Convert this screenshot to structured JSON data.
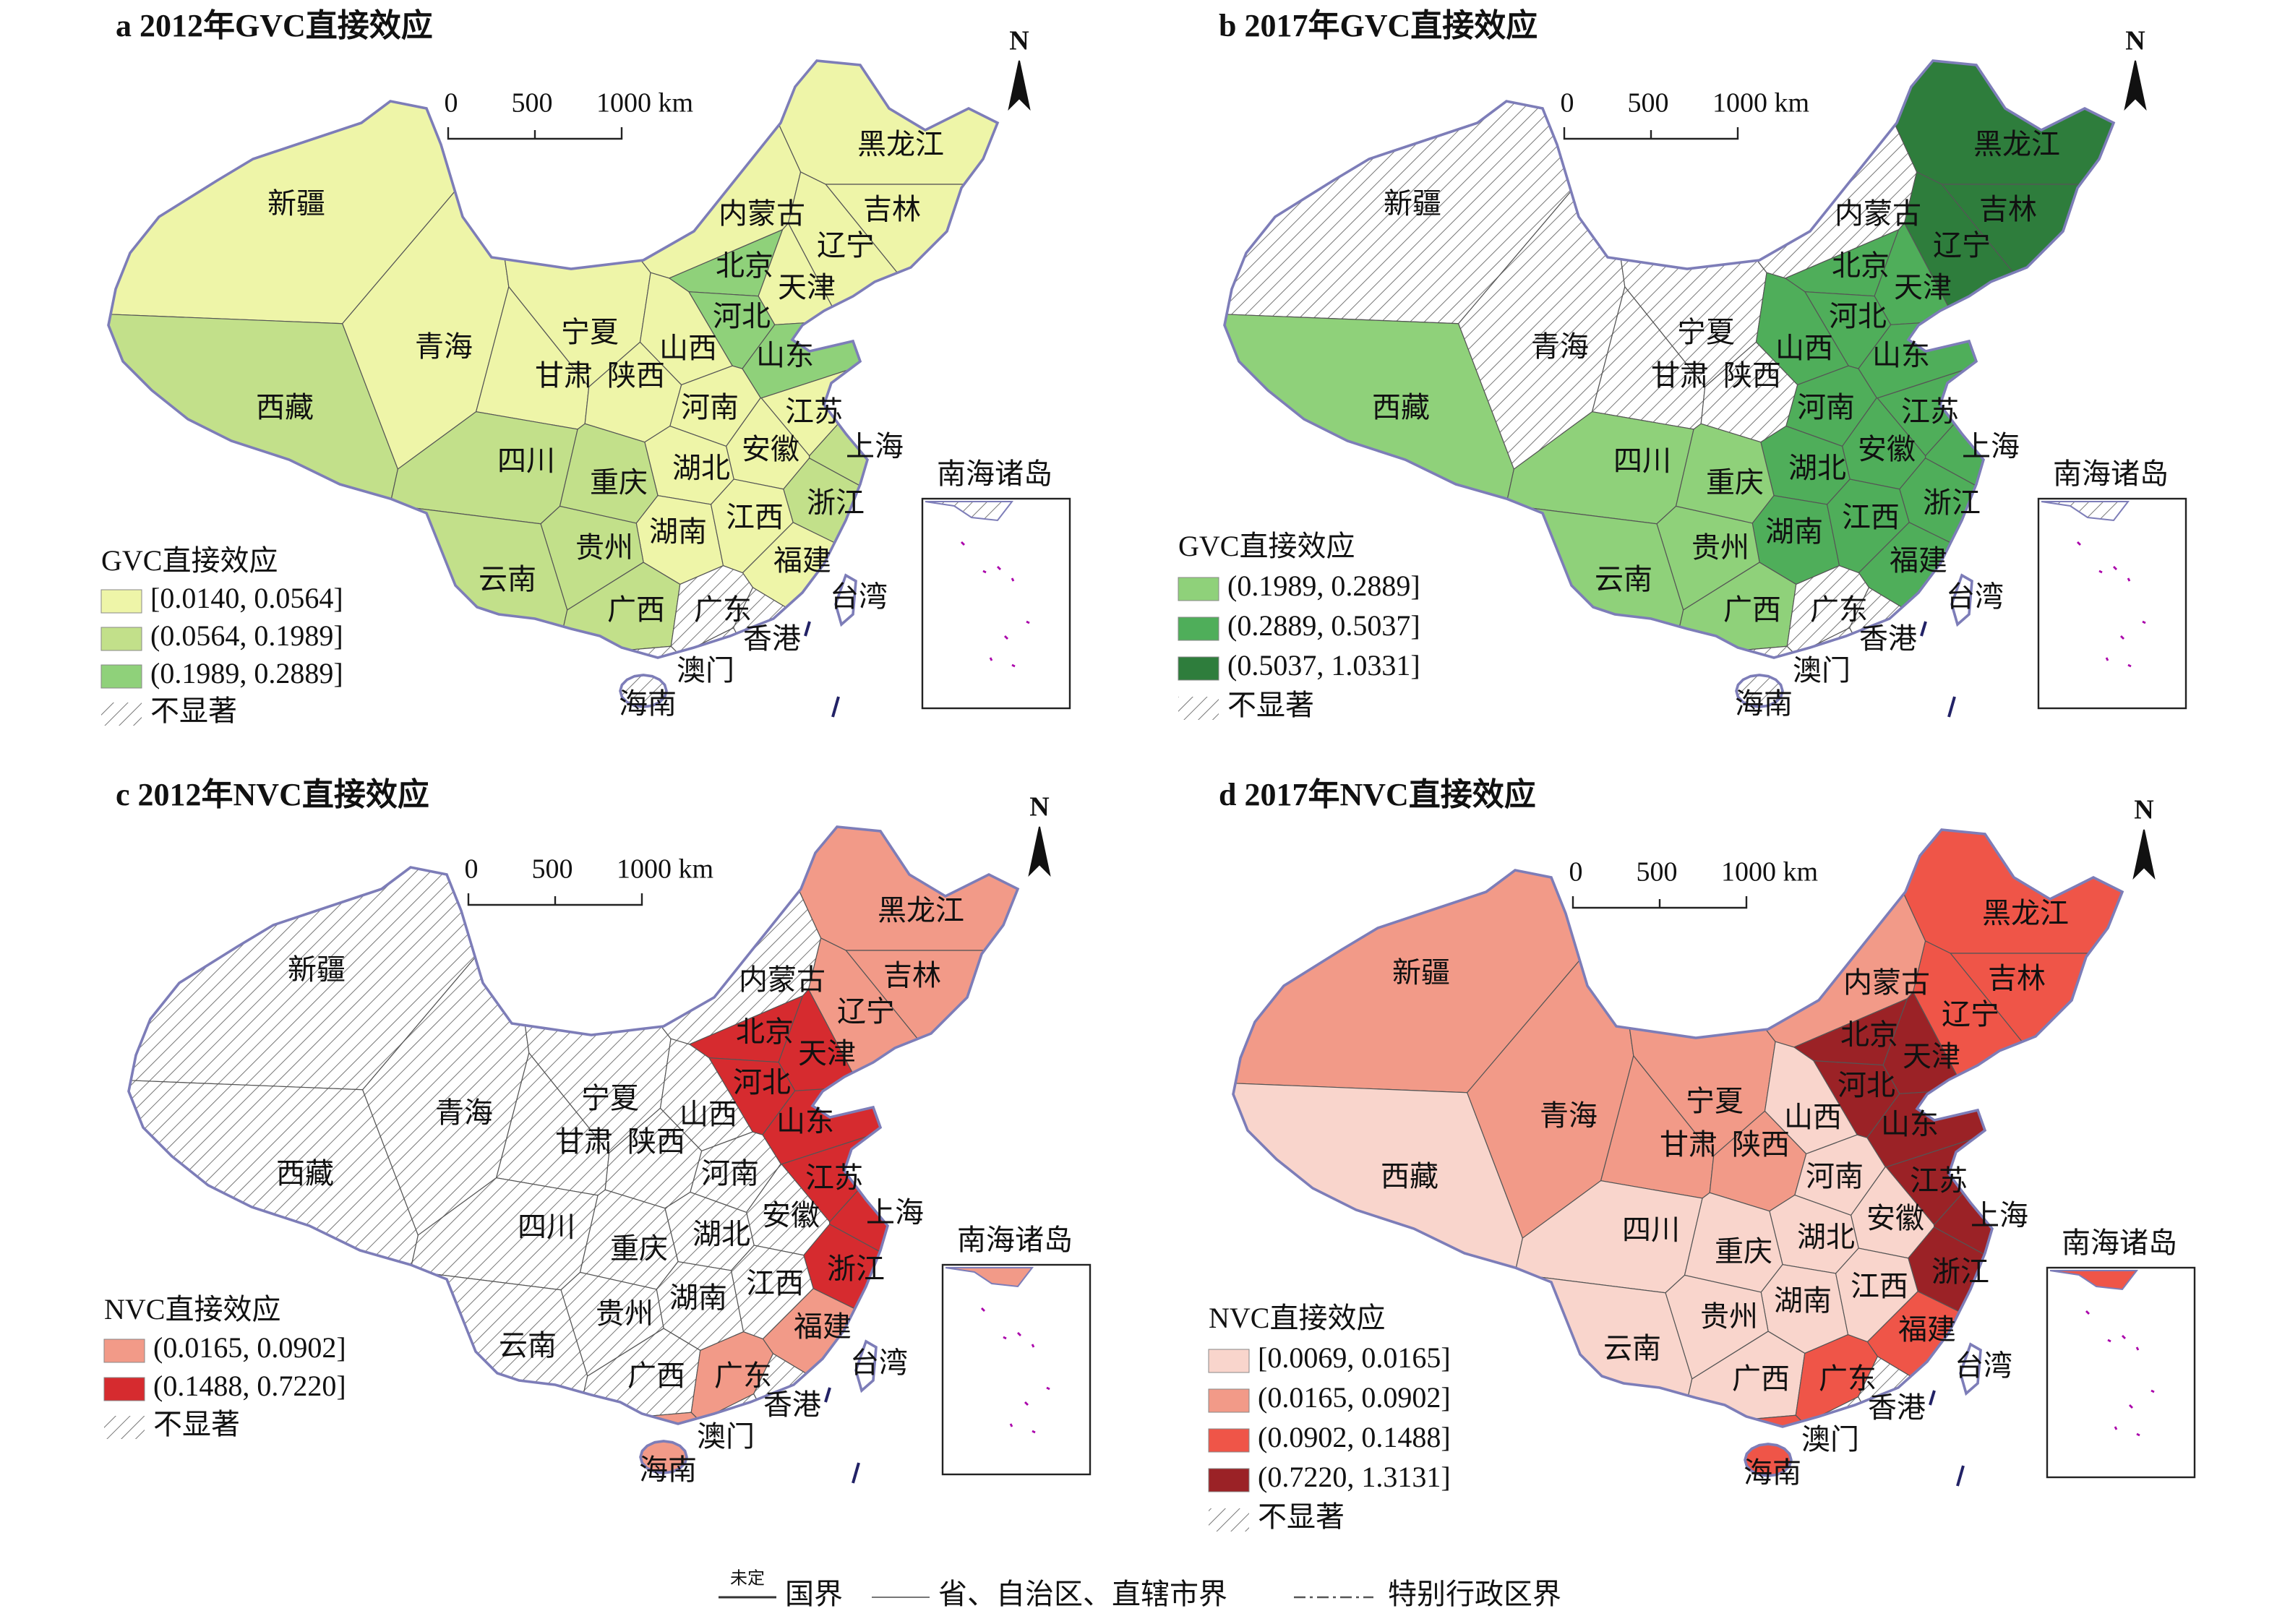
{
  "panels": [
    {
      "title": "a 2012年GVC直接效应",
      "scale_labels": [
        "0",
        "500",
        "1000 km"
      ],
      "north": "N",
      "inset_label": "南海诸岛",
      "legend": {
        "title": "GVC直接效应",
        "items": [
          {
            "label": "[0.0140, 0.0564]",
            "fill": "#eef5a8"
          },
          {
            "label": "(0.0564, 0.1989]",
            "fill": "#c2e08a"
          },
          {
            "label": "(0.1989, 0.2889]",
            "fill": "#8fd17a"
          },
          {
            "label": "不显著",
            "fill": "hatch"
          }
        ]
      },
      "provinces": [
        {
          "name": "新疆",
          "class": 0
        },
        {
          "name": "西藏",
          "class": 1
        },
        {
          "name": "青海",
          "class": 0
        },
        {
          "name": "甘肃",
          "class": 0
        },
        {
          "name": "宁夏",
          "class": 0
        },
        {
          "name": "陕西",
          "class": 0
        },
        {
          "name": "内蒙古",
          "class": 0
        },
        {
          "name": "黑龙江",
          "class": 0
        },
        {
          "name": "吉林",
          "class": 0
        },
        {
          "name": "辽宁",
          "class": 0
        },
        {
          "name": "北京",
          "class": 2
        },
        {
          "name": "天津",
          "class": 0
        },
        {
          "name": "河北",
          "class": 2
        },
        {
          "name": "山西",
          "class": 0
        },
        {
          "name": "山东",
          "class": 2
        },
        {
          "name": "河南",
          "class": 0
        },
        {
          "name": "江苏",
          "class": 0
        },
        {
          "name": "安徽",
          "class": 0
        },
        {
          "name": "上海",
          "class": 1
        },
        {
          "name": "湖北",
          "class": 0
        },
        {
          "name": "四川",
          "class": 1
        },
        {
          "name": "重庆",
          "class": 1
        },
        {
          "name": "浙江",
          "class": 1
        },
        {
          "name": "湖南",
          "class": 0
        },
        {
          "name": "江西",
          "class": 0
        },
        {
          "name": "贵州",
          "class": 1
        },
        {
          "name": "云南",
          "class": 1
        },
        {
          "name": "福建",
          "class": 0
        },
        {
          "name": "台湾"
        },
        {
          "name": "广西",
          "class": 1
        },
        {
          "name": "广东",
          "class": 3
        },
        {
          "name": "香港",
          "class": 3
        },
        {
          "name": "澳门",
          "class": 3
        },
        {
          "name": "海南",
          "class": 3
        }
      ]
    },
    {
      "title": "b 2017年GVC直接效应",
      "scale_labels": [
        "0",
        "500",
        "1000 km"
      ],
      "north": "N",
      "inset_label": "南海诸岛",
      "legend": {
        "title": "GVC直接效应",
        "items": [
          {
            "label": "(0.1989, 0.2889]",
            "fill": "#8fd17a"
          },
          {
            "label": "(0.2889, 0.5037]",
            "fill": "#4fae5a"
          },
          {
            "label": "(0.5037, 1.0331]",
            "fill": "#2e7d3c"
          },
          {
            "label": "不显著",
            "fill": "hatch"
          }
        ]
      },
      "provinces": [
        {
          "name": "新疆",
          "class": 3
        },
        {
          "name": "西藏",
          "class": 0
        },
        {
          "name": "青海",
          "class": 3
        },
        {
          "name": "甘肃",
          "class": 3
        },
        {
          "name": "宁夏",
          "class": 3
        },
        {
          "name": "陕西",
          "class": 3
        },
        {
          "name": "内蒙古",
          "class": 3
        },
        {
          "name": "黑龙江",
          "class": 2
        },
        {
          "name": "吉林",
          "class": 2
        },
        {
          "name": "辽宁",
          "class": 2
        },
        {
          "name": "北京",
          "class": 1
        },
        {
          "name": "天津",
          "class": 1
        },
        {
          "name": "河北",
          "class": 1
        },
        {
          "name": "山西",
          "class": 1
        },
        {
          "name": "山东",
          "class": 1
        },
        {
          "name": "河南",
          "class": 1
        },
        {
          "name": "江苏",
          "class": 1
        },
        {
          "name": "安徽",
          "class": 1
        },
        {
          "name": "上海",
          "class": 1
        },
        {
          "name": "湖北",
          "class": 1
        },
        {
          "name": "四川",
          "class": 0
        },
        {
          "name": "重庆",
          "class": 0
        },
        {
          "name": "浙江",
          "class": 1
        },
        {
          "name": "湖南",
          "class": 1
        },
        {
          "name": "江西",
          "class": 1
        },
        {
          "name": "贵州",
          "class": 0
        },
        {
          "name": "云南",
          "class": 0
        },
        {
          "name": "福建",
          "class": 1
        },
        {
          "name": "台湾"
        },
        {
          "name": "广西",
          "class": 0
        },
        {
          "name": "广东",
          "class": 3
        },
        {
          "name": "香港",
          "class": 3
        },
        {
          "name": "澳门",
          "class": 3
        },
        {
          "name": "海南",
          "class": 3
        }
      ]
    },
    {
      "title": "c 2012年NVC直接效应",
      "scale_labels": [
        "0",
        "500",
        "1000 km"
      ],
      "north": "N",
      "inset_label": "南海诸岛",
      "legend": {
        "title": "NVC直接效应",
        "items": [
          {
            "label": "(0.0165, 0.0902]",
            "fill": "#f29a88"
          },
          {
            "label": "(0.1488, 0.7220]",
            "fill": "#d62b2f"
          },
          {
            "label": "不显著",
            "fill": "hatch"
          }
        ]
      },
      "provinces": [
        {
          "name": "新疆",
          "class": 2
        },
        {
          "name": "西藏",
          "class": 2
        },
        {
          "name": "青海",
          "class": 2
        },
        {
          "name": "甘肃",
          "class": 2
        },
        {
          "name": "宁夏",
          "class": 2
        },
        {
          "name": "陕西",
          "class": 2
        },
        {
          "name": "内蒙古",
          "class": 2
        },
        {
          "name": "黑龙江",
          "class": 0
        },
        {
          "name": "吉林",
          "class": 0
        },
        {
          "name": "辽宁",
          "class": 0
        },
        {
          "name": "北京",
          "class": 1
        },
        {
          "name": "天津",
          "class": 1
        },
        {
          "name": "河北",
          "class": 1
        },
        {
          "name": "山西",
          "class": 2
        },
        {
          "name": "山东",
          "class": 1
        },
        {
          "name": "河南",
          "class": 2
        },
        {
          "name": "江苏",
          "class": 1
        },
        {
          "name": "安徽",
          "class": 2
        },
        {
          "name": "上海",
          "class": 1
        },
        {
          "name": "湖北",
          "class": 2
        },
        {
          "name": "四川",
          "class": 2
        },
        {
          "name": "重庆",
          "class": 2
        },
        {
          "name": "浙江",
          "class": 1
        },
        {
          "name": "湖南",
          "class": 2
        },
        {
          "name": "江西",
          "class": 2
        },
        {
          "name": "贵州",
          "class": 2
        },
        {
          "name": "云南",
          "class": 2
        },
        {
          "name": "福建",
          "class": 0
        },
        {
          "name": "台湾"
        },
        {
          "name": "广西",
          "class": 2
        },
        {
          "name": "广东",
          "class": 0
        },
        {
          "name": "香港",
          "class": 2
        },
        {
          "name": "澳门",
          "class": 2
        },
        {
          "name": "海南",
          "class": 0
        }
      ]
    },
    {
      "title": "d 2017年NVC直接效应",
      "scale_labels": [
        "0",
        "500",
        "1000 km"
      ],
      "north": "N",
      "inset_label": "南海诸岛",
      "legend": {
        "title": "NVC直接效应",
        "items": [
          {
            "label": "[0.0069, 0.0165]",
            "fill": "#f9d5cc"
          },
          {
            "label": "(0.0165, 0.0902]",
            "fill": "#f29a88"
          },
          {
            "label": "(0.0902, 0.1488]",
            "fill": "#ef5548"
          },
          {
            "label": "(0.7220, 1.3131]",
            "fill": "#9b2226"
          },
          {
            "label": "不显著",
            "fill": "hatch"
          }
        ]
      },
      "provinces": [
        {
          "name": "新疆",
          "class": 1
        },
        {
          "name": "西藏",
          "class": 0
        },
        {
          "name": "青海",
          "class": 1
        },
        {
          "name": "甘肃",
          "class": 1
        },
        {
          "name": "宁夏",
          "class": 1
        },
        {
          "name": "陕西",
          "class": 1
        },
        {
          "name": "内蒙古",
          "class": 1
        },
        {
          "name": "黑龙江",
          "class": 2
        },
        {
          "name": "吉林",
          "class": 2
        },
        {
          "name": "辽宁",
          "class": 2
        },
        {
          "name": "北京",
          "class": 3
        },
        {
          "name": "天津",
          "class": 3
        },
        {
          "name": "河北",
          "class": 3
        },
        {
          "name": "山西",
          "class": 0
        },
        {
          "name": "山东",
          "class": 3
        },
        {
          "name": "河南",
          "class": 0
        },
        {
          "name": "江苏",
          "class": 3
        },
        {
          "name": "安徽",
          "class": 0
        },
        {
          "name": "上海",
          "class": 3
        },
        {
          "name": "湖北",
          "class": 0
        },
        {
          "name": "四川",
          "class": 0
        },
        {
          "name": "重庆",
          "class": 0
        },
        {
          "name": "浙江",
          "class": 3
        },
        {
          "name": "湖南",
          "class": 0
        },
        {
          "name": "江西",
          "class": 0
        },
        {
          "name": "贵州",
          "class": 0
        },
        {
          "name": "云南",
          "class": 0
        },
        {
          "name": "福建",
          "class": 2
        },
        {
          "name": "台湾"
        },
        {
          "name": "广西",
          "class": 0
        },
        {
          "name": "广东",
          "class": 2
        },
        {
          "name": "香港",
          "class": 4
        },
        {
          "name": "澳门",
          "class": 4
        },
        {
          "name": "海南",
          "class": 2
        }
      ]
    }
  ],
  "footer": [
    {
      "note": "未定",
      "label": "国界"
    },
    {
      "label": "省、自治区、直辖市界"
    },
    {
      "label": "特别行政区界"
    }
  ]
}
